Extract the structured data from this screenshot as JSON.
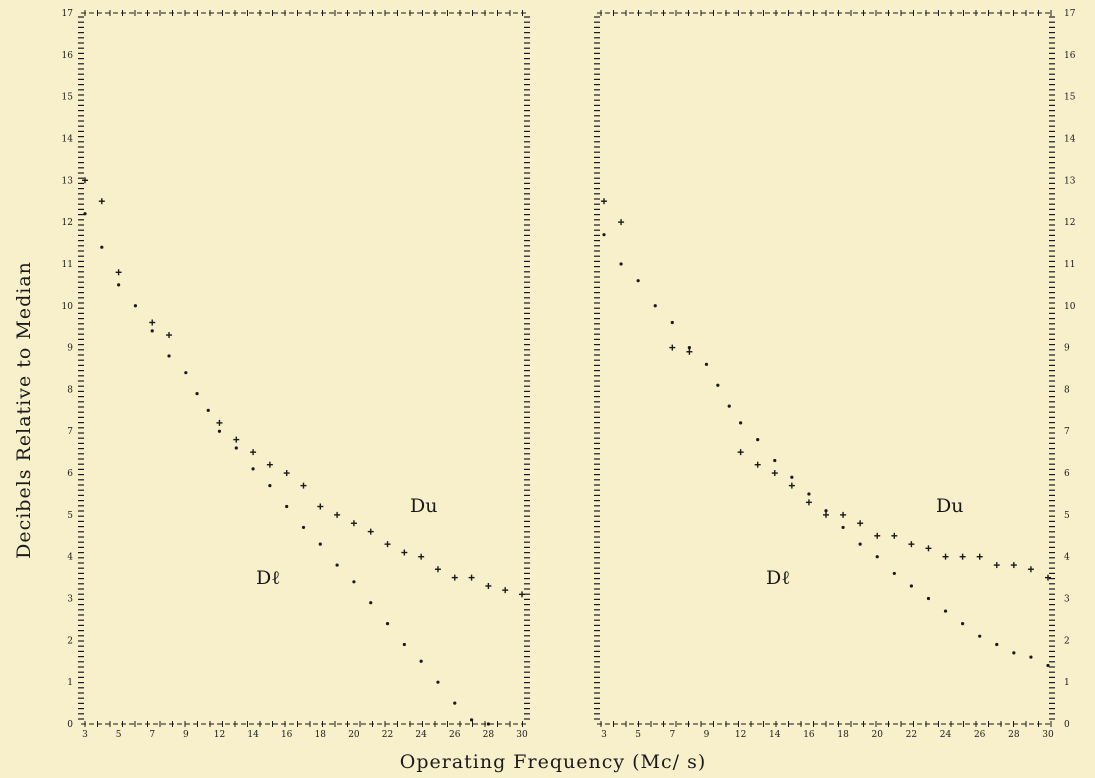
{
  "chart_data": [
    {
      "type": "scatter",
      "title": "",
      "xlabel": "Operating Frequency (Mc/ s)",
      "ylabel": "Decibels Relative to Median",
      "x_ticks": [
        "3",
        "5",
        "7",
        "9",
        "12",
        "14",
        "16",
        "18",
        "20",
        "22",
        "24",
        "26",
        "28",
        "30"
      ],
      "y_ticks": [
        "0",
        "1",
        "2",
        "3",
        "4",
        "5",
        "6",
        "7",
        "8",
        "9",
        "10",
        "11",
        "12",
        "13",
        "14",
        "15",
        "16",
        "17"
      ],
      "ylim": [
        0,
        17
      ],
      "xlim": [
        3,
        30
      ],
      "y_tick_side": "left",
      "series": [
        {
          "name": "Du",
          "marker": "plus",
          "x": [
            3,
            4,
            5,
            7,
            8,
            12,
            13,
            14,
            15,
            16,
            17,
            18,
            19,
            20,
            21,
            22,
            23,
            24,
            25,
            26,
            27,
            28,
            29,
            30
          ],
          "y": [
            13,
            12.5,
            10.8,
            9.6,
            9.3,
            7.2,
            6.8,
            6.5,
            6.2,
            6,
            5.7,
            5.2,
            5,
            4.8,
            4.6,
            4.3,
            4.1,
            4,
            3.7,
            3.5,
            3.5,
            3.3,
            3.2,
            3.1
          ]
        },
        {
          "name": "Dℓ",
          "marker": "dot",
          "x": [
            3,
            4,
            5,
            6,
            7,
            8,
            9,
            10,
            11,
            12,
            13,
            14,
            15,
            16,
            17,
            18,
            19,
            20,
            21,
            22,
            23,
            24,
            25,
            26,
            27,
            28
          ],
          "y": [
            12.2,
            11.4,
            10.5,
            10,
            9.4,
            8.8,
            8.4,
            7.9,
            7.5,
            7,
            6.6,
            6.1,
            5.7,
            5.2,
            4.7,
            4.3,
            3.8,
            3.4,
            2.9,
            2.4,
            1.9,
            1.5,
            1,
            0.5,
            0.1,
            0
          ]
        }
      ]
    },
    {
      "type": "scatter",
      "title": "",
      "xlabel": "Operating Frequency (Mc/ s)",
      "ylabel": "",
      "x_ticks": [
        "3",
        "5",
        "7",
        "9",
        "12",
        "14",
        "16",
        "18",
        "20",
        "22",
        "24",
        "26",
        "28",
        "30"
      ],
      "y_ticks": [
        "0",
        "1",
        "2",
        "3",
        "4",
        "5",
        "6",
        "7",
        "8",
        "9",
        "10",
        "11",
        "12",
        "13",
        "14",
        "15",
        "16",
        "17"
      ],
      "ylim": [
        0,
        17
      ],
      "xlim": [
        3,
        30
      ],
      "y_tick_side": "right",
      "series": [
        {
          "name": "Du",
          "marker": "plus",
          "x": [
            3,
            4,
            7,
            8,
            12,
            13,
            14,
            15,
            16,
            17,
            18,
            19,
            20,
            21,
            22,
            23,
            24,
            25,
            26,
            27,
            28,
            29,
            30
          ],
          "y": [
            12.5,
            12,
            9,
            8.9,
            6.5,
            6.2,
            6,
            5.7,
            5.3,
            5,
            5,
            4.8,
            4.5,
            4.5,
            4.3,
            4.2,
            4,
            4,
            4,
            3.8,
            3.8,
            3.7,
            3.5
          ]
        },
        {
          "name": "Dℓ",
          "marker": "dot",
          "x": [
            3,
            4,
            5,
            6,
            7,
            8,
            9,
            10,
            11,
            12,
            13,
            14,
            15,
            16,
            17,
            18,
            19,
            20,
            21,
            22,
            23,
            24,
            25,
            26,
            27,
            28,
            29,
            30
          ],
          "y": [
            11.7,
            11,
            10.6,
            10,
            9.6,
            9,
            8.6,
            8.1,
            7.6,
            7.2,
            6.8,
            6.3,
            5.9,
            5.5,
            5.1,
            4.7,
            4.3,
            4,
            3.6,
            3.3,
            3,
            2.7,
            2.4,
            2.1,
            1.9,
            1.7,
            1.6,
            1.4
          ]
        }
      ]
    }
  ]
}
